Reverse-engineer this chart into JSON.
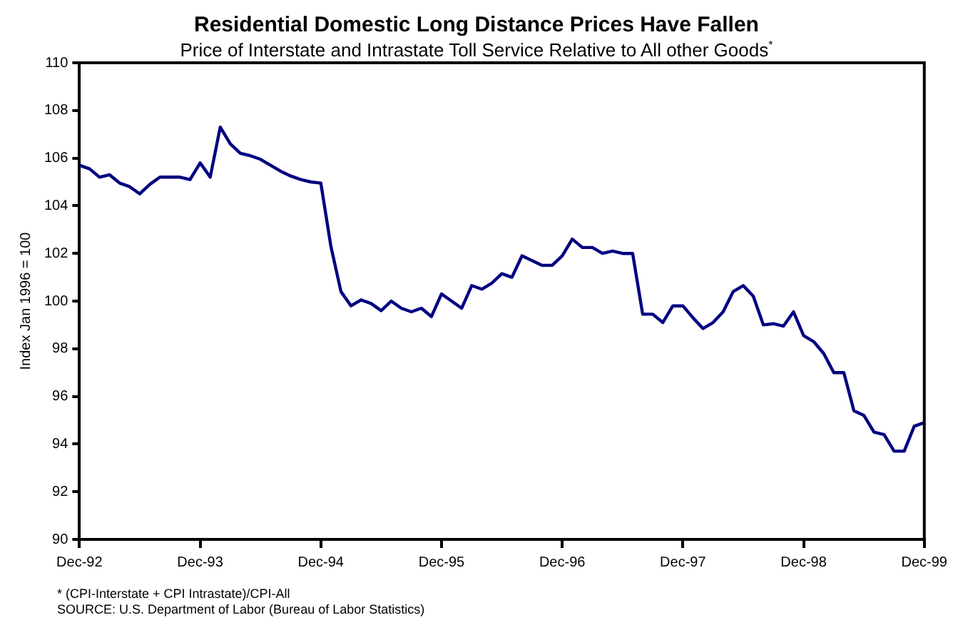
{
  "chart_data": {
    "type": "line",
    "title": "Residential Domestic Long Distance Prices Have Fallen",
    "subtitle": "Price of Interstate and Intrastate Toll Service Relative to All other Goods$^{*}$",
    "ylabel": "Index Jan 1996 = 100",
    "categories": [
      "Dec-92",
      null,
      null,
      null,
      null,
      null,
      null,
      null,
      null,
      null,
      null,
      null,
      "Dec-93",
      null,
      null,
      null,
      null,
      null,
      null,
      null,
      null,
      null,
      null,
      null,
      "Dec-94",
      null,
      null,
      null,
      null,
      null,
      null,
      null,
      null,
      null,
      null,
      null,
      "Dec-95",
      null,
      null,
      null,
      null,
      null,
      null,
      null,
      null,
      null,
      null,
      null,
      "Dec-96",
      null,
      null,
      null,
      null,
      null,
      null,
      null,
      null,
      null,
      null,
      null,
      "Dec-97",
      null,
      null,
      null,
      null,
      null,
      null,
      null,
      null,
      null,
      null,
      null,
      "Dec-98",
      null,
      null,
      null,
      null,
      null,
      null,
      null,
      null,
      null,
      null,
      null,
      "Dec-99"
    ],
    "series": [
      {
        "color": "#000080",
        "values": [
          105.7,
          105.55,
          105.2,
          105.3,
          104.95,
          104.8,
          104.5,
          104.9,
          105.2,
          105.2,
          105.2,
          105.1,
          105.8,
          105.2,
          107.3,
          106.6,
          106.2,
          106.1,
          105.95,
          105.7,
          105.45,
          105.25,
          105.1,
          105.0,
          104.95,
          102.3,
          100.4,
          99.8,
          100.05,
          99.9,
          99.6,
          100.0,
          99.7,
          99.55,
          99.7,
          99.35,
          100.3,
          100.0,
          99.7,
          100.65,
          100.5,
          100.75,
          101.15,
          101.0,
          101.9,
          101.7,
          101.5,
          101.5,
          101.9,
          102.6,
          102.25,
          102.25,
          102.0,
          102.1,
          102.0,
          102.0,
          99.45,
          99.45,
          99.1,
          99.8,
          99.8,
          99.3,
          98.85,
          99.1,
          99.55,
          100.4,
          100.65,
          100.2,
          99.0,
          99.05,
          98.95,
          99.55,
          98.55,
          98.3,
          97.8,
          97.0,
          97.0,
          95.4,
          95.2,
          94.5,
          94.4,
          93.7,
          93.7,
          94.75,
          94.9
        ]
      }
    ],
    "ylim": [
      90,
      110
    ],
    "yticks": [
      90,
      92,
      94,
      96,
      98,
      100,
      102,
      104,
      106,
      108,
      110
    ],
    "grid": false,
    "legend": false,
    "marker": "none",
    "line_style": "solid",
    "annotations": [
      "* (CPI-Interstate + CPI Intrastate)/CPI-All",
      "SOURCE: U.S. Department of Labor (Bureau of Labor Statistics)"
    ]
  }
}
